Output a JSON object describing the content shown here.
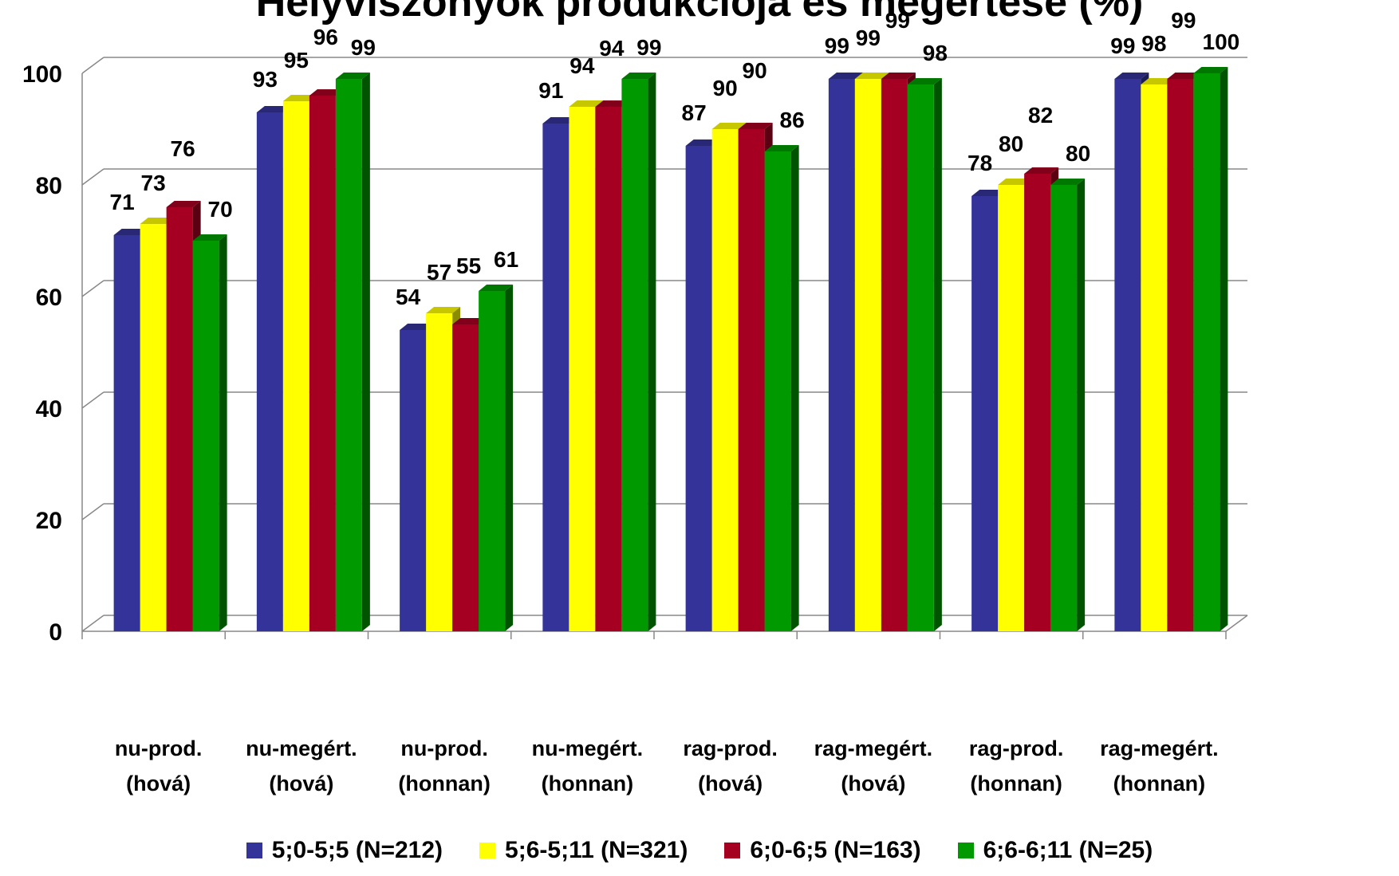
{
  "chart_data": {
    "type": "bar",
    "title": "Helyviszonyok produkciója és megértése (%)",
    "categories": [
      [
        "nu-prod.",
        "(hová)"
      ],
      [
        "nu-megért.",
        "(hová)"
      ],
      [
        "nu-prod.",
        "(honnan)"
      ],
      [
        "nu-megért.",
        "(honnan)"
      ],
      [
        "rag-prod.",
        "(hová)"
      ],
      [
        "rag-megért.",
        "(hová)"
      ],
      [
        "rag-prod.",
        "(honnan)"
      ],
      [
        "rag-megért.",
        "(honnan)"
      ]
    ],
    "series": [
      {
        "name": "5;0-5;5 (N=212)",
        "color": "#333399",
        "values": [
          71,
          93,
          54,
          91,
          87,
          99,
          78,
          99
        ]
      },
      {
        "name": "5;6-5;11 (N=321)",
        "color": "#FFFF00",
        "values": [
          73,
          95,
          57,
          94,
          90,
          99,
          80,
          98
        ]
      },
      {
        "name": "6;0-6;5 (N=163)",
        "color": "#A50021",
        "values": [
          76,
          96,
          55,
          94,
          90,
          99,
          82,
          99
        ]
      },
      {
        "name": "6;6-6;11 (N=25)",
        "color": "#009900",
        "values": [
          70,
          99,
          61,
          99,
          86,
          98,
          80,
          100
        ]
      }
    ],
    "ylim": [
      0,
      100
    ],
    "yticks": [
      0,
      20,
      40,
      60,
      80,
      100
    ],
    "grid": true,
    "legend_position": "bottom",
    "three_d": true
  }
}
